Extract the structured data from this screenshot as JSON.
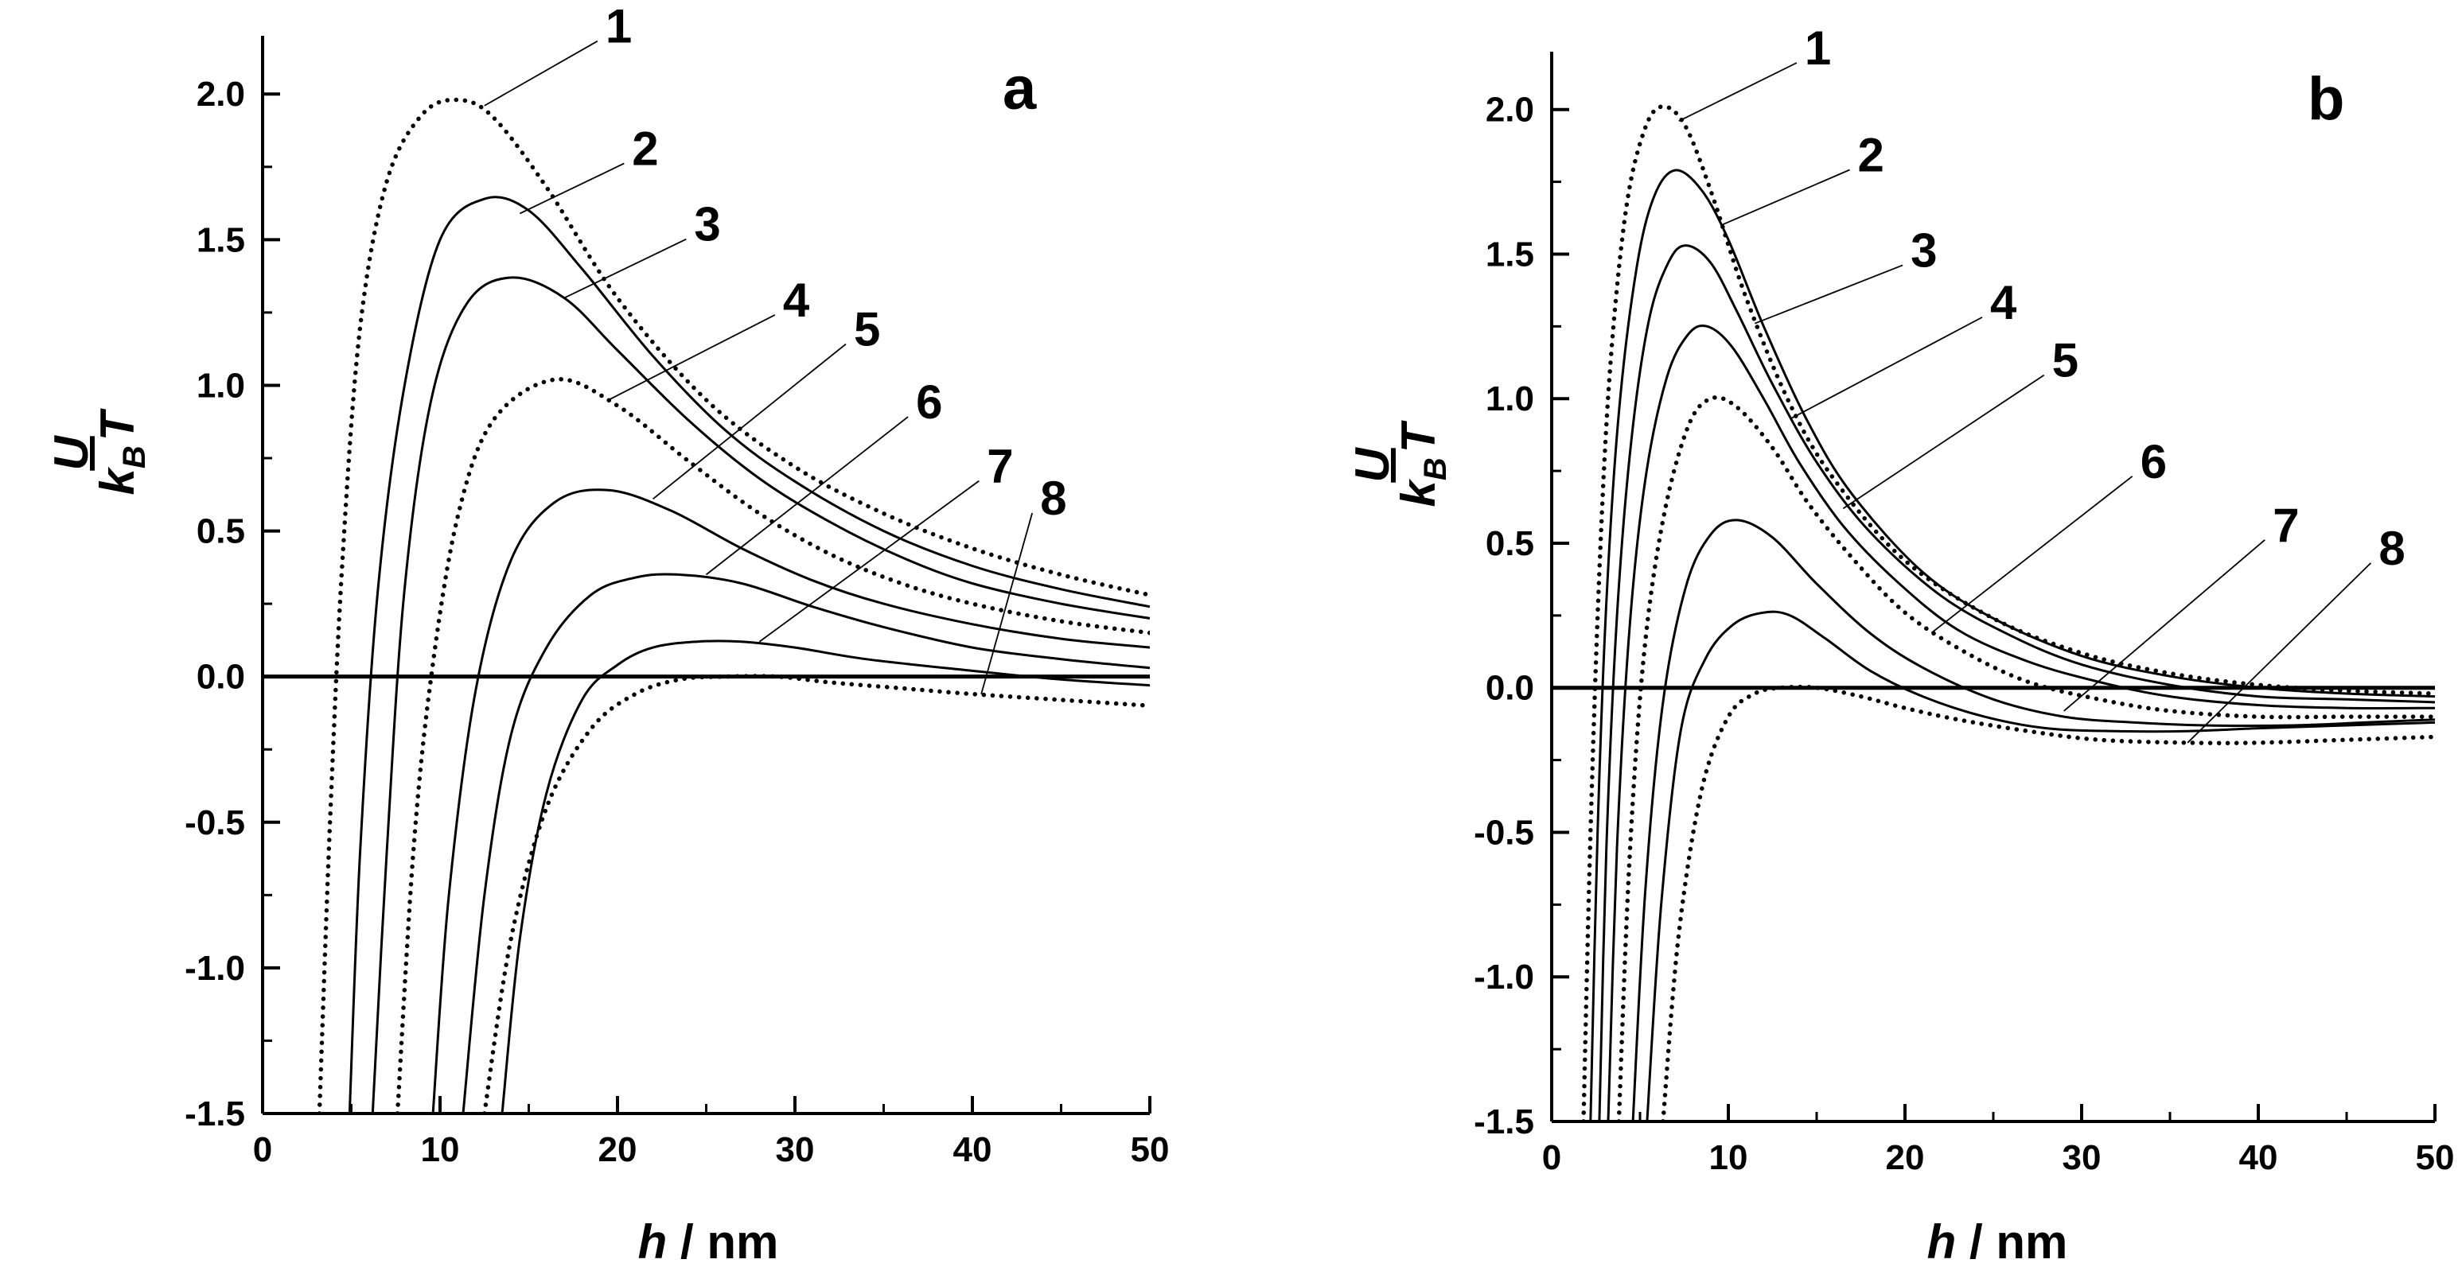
{
  "chart_data": [
    {
      "type": "line",
      "panel_label": "a",
      "xlabel_var": "h",
      "xlabel_unit": " / nm",
      "ylabel_num": "U",
      "ylabel_k": "k",
      "ylabel_sub": "B",
      "ylabel_T": "T",
      "xlim": [
        0,
        50
      ],
      "ylim": [
        -1.5,
        2.2
      ],
      "xticks": [
        0,
        10,
        20,
        30,
        40,
        50
      ],
      "yticks": [
        -1.5,
        -1.0,
        -0.5,
        0.0,
        0.5,
        1.0,
        1.5,
        2.0
      ],
      "ytick_labels": [
        "-1.5",
        "-1.0",
        "-0.5",
        "0.0",
        "0.5",
        "1.0",
        "1.5",
        "2.0"
      ],
      "xtick_labels": [
        "0",
        "10",
        "20",
        "30",
        "40",
        "50"
      ],
      "zero_line": true,
      "series": [
        {
          "name": "1",
          "style": "dotted",
          "x": [
            3.2,
            3.8,
            4.5,
            5.5,
            7.0,
            9.0,
            11.0,
            13.0,
            16.0,
            20.0,
            25.0,
            30.0,
            35.0,
            40.0,
            45.0,
            50.0
          ],
          "values": [
            -1.5,
            -0.5,
            0.4,
            1.2,
            1.7,
            1.93,
            1.98,
            1.92,
            1.68,
            1.3,
            0.95,
            0.72,
            0.56,
            0.44,
            0.35,
            0.28
          ]
        },
        {
          "name": "2",
          "style": "solid",
          "x": [
            4.9,
            5.5,
            6.5,
            8.0,
            10.0,
            12.5,
            15.0,
            18.0,
            22.0,
            26.0,
            30.0,
            35.0,
            40.0,
            45.0,
            50.0
          ],
          "values": [
            -1.5,
            -0.6,
            0.3,
            1.0,
            1.5,
            1.64,
            1.6,
            1.4,
            1.1,
            0.85,
            0.67,
            0.5,
            0.38,
            0.3,
            0.24
          ]
        },
        {
          "name": "3",
          "style": "solid",
          "x": [
            6.2,
            7.0,
            8.0,
            9.5,
            11.5,
            14.0,
            17.0,
            20.0,
            24.0,
            28.0,
            32.0,
            36.0,
            40.0,
            45.0,
            50.0
          ],
          "values": [
            -1.5,
            -0.6,
            0.3,
            0.95,
            1.28,
            1.37,
            1.3,
            1.12,
            0.88,
            0.68,
            0.53,
            0.41,
            0.32,
            0.25,
            0.2
          ]
        },
        {
          "name": "4",
          "style": "dotted",
          "x": [
            7.6,
            8.5,
            9.5,
            11.0,
            13.0,
            16.5,
            20.0,
            24.0,
            28.0,
            32.0,
            36.0,
            40.0,
            45.0,
            50.0
          ],
          "values": [
            -1.5,
            -0.6,
            0.0,
            0.55,
            0.88,
            1.02,
            0.93,
            0.74,
            0.56,
            0.42,
            0.32,
            0.25,
            0.19,
            0.15
          ]
        },
        {
          "name": "5",
          "style": "solid",
          "x": [
            9.6,
            10.5,
            12.0,
            14.0,
            16.5,
            19.5,
            23.0,
            27.0,
            31.0,
            35.0,
            40.0,
            45.0,
            50.0
          ],
          "values": [
            -1.5,
            -0.75,
            -0.05,
            0.4,
            0.6,
            0.64,
            0.57,
            0.44,
            0.33,
            0.25,
            0.18,
            0.13,
            0.1
          ]
        },
        {
          "name": "6",
          "style": "solid",
          "x": [
            11.3,
            12.5,
            14.0,
            16.0,
            18.5,
            21.0,
            23.5,
            27.0,
            31.0,
            35.0,
            40.0,
            45.0,
            50.0
          ],
          "values": [
            -1.5,
            -0.75,
            -0.2,
            0.1,
            0.28,
            0.34,
            0.35,
            0.32,
            0.24,
            0.17,
            0.1,
            0.06,
            0.03
          ]
        },
        {
          "name": "7",
          "style": "solid",
          "x": [
            13.5,
            14.5,
            16.0,
            18.0,
            20.0,
            22.0,
            24.5,
            27.0,
            30.0,
            34.0,
            40.0,
            45.0,
            50.0
          ],
          "values": [
            -1.5,
            -0.9,
            -0.4,
            -0.08,
            0.04,
            0.1,
            0.12,
            0.12,
            0.1,
            0.06,
            0.02,
            -0.01,
            -0.03
          ]
        },
        {
          "name": "8",
          "style": "dotted",
          "x": [
            12.5,
            14.0,
            16.0,
            18.5,
            21.0,
            23.5,
            26.0,
            29.0,
            32.0,
            36.0,
            40.0,
            45.0,
            50.0
          ],
          "values": [
            -1.5,
            -0.9,
            -0.45,
            -0.18,
            -0.06,
            -0.01,
            0.0,
            0.0,
            -0.02,
            -0.04,
            -0.06,
            -0.08,
            -0.1
          ]
        }
      ],
      "label_anchors": [
        {
          "name": "1",
          "x": 12.5,
          "y": 1.96,
          "tx": 19.5,
          "ty": 2.22
        },
        {
          "name": "2",
          "x": 14.5,
          "y": 1.59,
          "tx": 21.0,
          "ty": 1.8
        },
        {
          "name": "3",
          "x": 17.0,
          "y": 1.3,
          "tx": 24.5,
          "ty": 1.54
        },
        {
          "name": "4",
          "x": 19.5,
          "y": 0.95,
          "tx": 29.5,
          "ty": 1.28
        },
        {
          "name": "5",
          "x": 22.0,
          "y": 0.61,
          "tx": 33.5,
          "ty": 1.18
        },
        {
          "name": "6",
          "x": 25.0,
          "y": 0.35,
          "tx": 37.0,
          "ty": 0.93
        },
        {
          "name": "7",
          "x": 28.0,
          "y": 0.12,
          "tx": 41.0,
          "ty": 0.71
        },
        {
          "name": "8",
          "x": 40.5,
          "y": -0.06,
          "tx": 44.0,
          "ty": 0.6
        }
      ]
    },
    {
      "type": "line",
      "panel_label": "b",
      "xlabel_var": "h",
      "xlabel_unit": " / nm",
      "ylabel_num": "U",
      "ylabel_k": "k",
      "ylabel_sub": "B",
      "ylabel_T": "T",
      "xlim": [
        0,
        50
      ],
      "ylim": [
        -1.5,
        2.2
      ],
      "xticks": [
        0,
        10,
        20,
        30,
        40,
        50
      ],
      "yticks": [
        -1.5,
        -1.0,
        -0.5,
        0.0,
        0.5,
        1.0,
        1.5,
        2.0
      ],
      "ytick_labels": [
        "-1.5",
        "-1.0",
        "-0.5",
        "0.0",
        "0.5",
        "1.0",
        "1.5",
        "2.0"
      ],
      "xtick_labels": [
        "0",
        "10",
        "20",
        "30",
        "40",
        "50"
      ],
      "zero_line": true,
      "series": [
        {
          "name": "1",
          "style": "dotted",
          "x": [
            1.8,
            2.2,
            2.7,
            3.3,
            4.2,
            5.2,
            6.2,
            7.5,
            9.0,
            11.0,
            13.5,
            16.0,
            20.0,
            25.0,
            30.0,
            35.0,
            40.0,
            45.0,
            50.0
          ],
          "values": [
            -1.5,
            -0.5,
            0.4,
            1.1,
            1.65,
            1.92,
            2.01,
            1.95,
            1.72,
            1.35,
            0.98,
            0.72,
            0.44,
            0.24,
            0.12,
            0.05,
            0.01,
            -0.01,
            -0.02
          ]
        },
        {
          "name": "2",
          "style": "solid",
          "x": [
            2.2,
            2.6,
            3.1,
            3.8,
            4.8,
            5.8,
            7.0,
            8.5,
            10.0,
            12.0,
            14.5,
            17.0,
            21.0,
            25.0,
            30.0,
            35.0,
            40.0,
            45.0,
            50.0
          ],
          "values": [
            -1.5,
            -0.5,
            0.3,
            0.95,
            1.45,
            1.7,
            1.79,
            1.72,
            1.55,
            1.25,
            0.92,
            0.67,
            0.4,
            0.24,
            0.11,
            0.04,
            0.0,
            -0.02,
            -0.03
          ]
        },
        {
          "name": "3",
          "style": "solid",
          "x": [
            2.7,
            3.1,
            3.7,
            4.5,
            5.5,
            6.6,
            7.6,
            9.0,
            10.5,
            12.5,
            15.0,
            18.0,
            22.0,
            26.0,
            30.0,
            35.0,
            40.0,
            45.0,
            50.0
          ],
          "values": [
            -1.5,
            -0.55,
            0.25,
            0.85,
            1.27,
            1.47,
            1.53,
            1.47,
            1.3,
            1.05,
            0.78,
            0.54,
            0.32,
            0.18,
            0.08,
            0.01,
            -0.03,
            -0.04,
            -0.05
          ]
        },
        {
          "name": "4",
          "style": "solid",
          "x": [
            3.2,
            3.7,
            4.4,
            5.3,
            6.5,
            7.7,
            8.8,
            10.2,
            12.0,
            14.0,
            16.5,
            19.5,
            23.0,
            27.0,
            31.0,
            35.0,
            40.0,
            45.0,
            50.0
          ],
          "values": [
            -1.5,
            -0.55,
            0.2,
            0.72,
            1.07,
            1.22,
            1.25,
            1.18,
            1.0,
            0.78,
            0.56,
            0.37,
            0.2,
            0.09,
            0.02,
            -0.03,
            -0.06,
            -0.07,
            -0.07
          ]
        },
        {
          "name": "5",
          "style": "dotted",
          "x": [
            3.8,
            4.4,
            5.2,
            6.3,
            7.7,
            9.0,
            10.5,
            12.5,
            14.5,
            17.0,
            20.0,
            23.5,
            27.0,
            31.0,
            35.0,
            40.0,
            45.0,
            50.0
          ],
          "values": [
            -1.5,
            -0.6,
            0.1,
            0.58,
            0.9,
            1.0,
            0.97,
            0.83,
            0.64,
            0.45,
            0.26,
            0.12,
            0.02,
            -0.04,
            -0.08,
            -0.1,
            -0.1,
            -0.1
          ]
        },
        {
          "name": "6",
          "style": "solid",
          "x": [
            4.6,
            5.3,
            6.3,
            7.6,
            9.0,
            10.5,
            12.5,
            15.0,
            18.0,
            21.0,
            25.0,
            29.0,
            33.0,
            37.0,
            42.0,
            46.0,
            50.0
          ],
          "values": [
            -1.5,
            -0.7,
            -0.05,
            0.35,
            0.53,
            0.58,
            0.52,
            0.36,
            0.19,
            0.07,
            -0.04,
            -0.1,
            -0.12,
            -0.13,
            -0.13,
            -0.12,
            -0.11
          ]
        },
        {
          "name": "7",
          "style": "solid",
          "x": [
            5.4,
            6.2,
            7.3,
            8.7,
            10.3,
            12.0,
            13.5,
            15.5,
            18.0,
            21.0,
            24.5,
            28.0,
            32.0,
            36.0,
            40.0,
            45.0,
            50.0
          ],
          "values": [
            -1.5,
            -0.75,
            -0.15,
            0.1,
            0.22,
            0.26,
            0.25,
            0.17,
            0.06,
            -0.03,
            -0.1,
            -0.14,
            -0.15,
            -0.15,
            -0.14,
            -0.13,
            -0.12
          ]
        },
        {
          "name": "8",
          "style": "dotted",
          "x": [
            6.3,
            7.2,
            8.5,
            10.0,
            11.5,
            13.0,
            15.0,
            17.5,
            20.0,
            23.0,
            27.0,
            31.0,
            36.0,
            40.0,
            45.0,
            50.0
          ],
          "values": [
            -1.5,
            -0.85,
            -0.35,
            -0.1,
            -0.02,
            0.0,
            0.0,
            -0.03,
            -0.07,
            -0.11,
            -0.15,
            -0.18,
            -0.19,
            -0.19,
            -0.18,
            -0.17
          ]
        }
      ],
      "label_anchors": [
        {
          "name": "1",
          "x": 7.2,
          "y": 1.96,
          "tx": 14.5,
          "ty": 2.2
        },
        {
          "name": "2",
          "x": 9.6,
          "y": 1.6,
          "tx": 17.5,
          "ty": 1.83
        },
        {
          "name": "3",
          "x": 11.5,
          "y": 1.26,
          "tx": 20.5,
          "ty": 1.5
        },
        {
          "name": "4",
          "x": 13.5,
          "y": 0.93,
          "tx": 25.0,
          "ty": 1.32
        },
        {
          "name": "5",
          "x": 16.5,
          "y": 0.62,
          "tx": 28.5,
          "ty": 1.12
        },
        {
          "name": "6",
          "x": 21.5,
          "y": 0.19,
          "tx": 33.5,
          "ty": 0.77
        },
        {
          "name": "7",
          "x": 29.0,
          "y": -0.08,
          "tx": 41.0,
          "ty": 0.55
        },
        {
          "name": "8",
          "x": 36.0,
          "y": -0.19,
          "tx": 47.0,
          "ty": 0.47
        }
      ]
    }
  ]
}
